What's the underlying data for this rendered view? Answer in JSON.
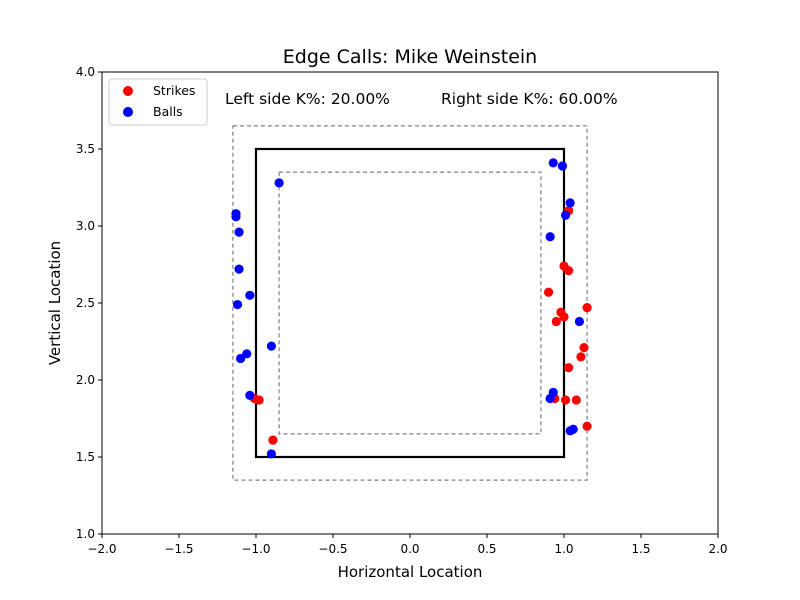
{
  "chart_data": {
    "type": "scatter",
    "title": "Edge Calls: Mike Weinstein",
    "xlabel": "Horizontal Location",
    "ylabel": "Vertical Location",
    "xlim": [
      -2.0,
      2.0
    ],
    "ylim": [
      1.0,
      4.0
    ],
    "xticks": [
      "−2.0",
      "−1.5",
      "−1.0",
      "−0.5",
      "0.0",
      "0.5",
      "1.0",
      "1.5",
      "2.0"
    ],
    "yticks": [
      "1.0",
      "1.5",
      "2.0",
      "2.5",
      "3.0",
      "3.5",
      "4.0"
    ],
    "annotations": {
      "left": "Left side K%: 20.00%",
      "right": "Right side K%: 60.00%"
    },
    "legend": {
      "placement": "upper-left"
    },
    "zones": {
      "strike_zone": {
        "x": [
          -1.0,
          1.0
        ],
        "y": [
          1.5,
          3.5
        ],
        "style": "solid"
      },
      "outer_zone": {
        "x": [
          -1.15,
          1.15
        ],
        "y": [
          1.35,
          3.65
        ],
        "style": "dashed"
      },
      "inner_zone": {
        "x": [
          -0.85,
          0.85
        ],
        "y": [
          1.65,
          3.35
        ],
        "style": "dashed"
      }
    },
    "series": [
      {
        "name": "Strikes",
        "color": "#ff0000",
        "points": [
          {
            "x": 1.03,
            "y": 3.1
          },
          {
            "x": 1.0,
            "y": 2.74
          },
          {
            "x": 1.03,
            "y": 2.71
          },
          {
            "x": 0.9,
            "y": 2.57
          },
          {
            "x": 1.15,
            "y": 2.47
          },
          {
            "x": 0.98,
            "y": 2.44
          },
          {
            "x": 1.0,
            "y": 2.41
          },
          {
            "x": 0.95,
            "y": 2.38
          },
          {
            "x": 1.13,
            "y": 2.21
          },
          {
            "x": 1.11,
            "y": 2.15
          },
          {
            "x": 1.03,
            "y": 2.08
          },
          {
            "x": 0.94,
            "y": 1.88
          },
          {
            "x": 1.01,
            "y": 1.87
          },
          {
            "x": 1.08,
            "y": 1.87
          },
          {
            "x": 1.15,
            "y": 1.7
          },
          {
            "x": -1.01,
            "y": 1.88
          },
          {
            "x": -0.98,
            "y": 1.87
          },
          {
            "x": -0.89,
            "y": 1.61
          }
        ]
      },
      {
        "name": "Balls",
        "color": "#0000ff",
        "points": [
          {
            "x": -0.85,
            "y": 3.28
          },
          {
            "x": -1.13,
            "y": 3.08
          },
          {
            "x": -1.13,
            "y": 3.06
          },
          {
            "x": -1.11,
            "y": 2.96
          },
          {
            "x": -1.11,
            "y": 2.72
          },
          {
            "x": -1.04,
            "y": 2.55
          },
          {
            "x": -1.12,
            "y": 2.49
          },
          {
            "x": -0.9,
            "y": 2.22
          },
          {
            "x": -1.06,
            "y": 2.17
          },
          {
            "x": -1.1,
            "y": 2.14
          },
          {
            "x": -1.04,
            "y": 1.9
          },
          {
            "x": -0.9,
            "y": 1.52
          },
          {
            "x": 0.93,
            "y": 3.41
          },
          {
            "x": 0.99,
            "y": 3.39
          },
          {
            "x": 1.04,
            "y": 3.15
          },
          {
            "x": 1.01,
            "y": 3.07
          },
          {
            "x": 0.91,
            "y": 2.93
          },
          {
            "x": 1.1,
            "y": 2.38
          },
          {
            "x": 0.93,
            "y": 1.92
          },
          {
            "x": 0.91,
            "y": 1.88
          },
          {
            "x": 1.04,
            "y": 1.67
          },
          {
            "x": 1.06,
            "y": 1.68
          }
        ]
      }
    ]
  }
}
